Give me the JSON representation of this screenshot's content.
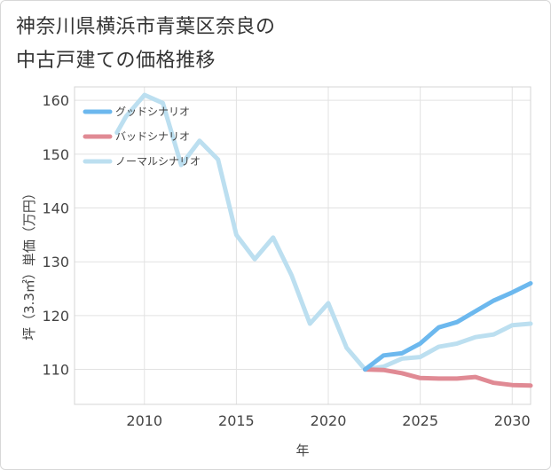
{
  "title_lines": [
    "神奈川県横浜市青葉区奈良の",
    "中古戸建ての価格推移"
  ],
  "chart_data": {
    "type": "line",
    "xlabel": "年",
    "ylabel": "坪（3.3㎡）単価（万円）",
    "xlim": [
      2006.2,
      2031
    ],
    "ylim": [
      103.5,
      162.5
    ],
    "x_ticks": [
      2010,
      2015,
      2020,
      2025,
      2030
    ],
    "y_ticks": [
      110,
      120,
      130,
      140,
      150,
      160
    ],
    "grid": true,
    "legend_position": "top-left",
    "series": [
      {
        "name": "グッドシナリオ",
        "color": "#6cb8ee",
        "width": 5,
        "x": [
          2022,
          2023,
          2024,
          2025,
          2026,
          2027,
          2028,
          2029,
          2030,
          2031
        ],
        "y": [
          110.0,
          112.6,
          113.0,
          114.8,
          117.8,
          118.8,
          120.8,
          122.8,
          124.3,
          126.0
        ]
      },
      {
        "name": "バッドシナリオ",
        "color": "#e08a94",
        "width": 5,
        "x": [
          2022,
          2023,
          2024,
          2025,
          2026,
          2027,
          2028,
          2029,
          2030,
          2031
        ],
        "y": [
          110.0,
          109.9,
          109.3,
          108.4,
          108.3,
          108.3,
          108.6,
          107.5,
          107.1,
          107.0
        ]
      },
      {
        "name": "ノーマルシナリオ",
        "color": "#bcdff0",
        "width": 5,
        "x": [
          2008.5,
          2009,
          2010,
          2011,
          2012,
          2013,
          2014,
          2015,
          2016,
          2017,
          2018,
          2019,
          2020,
          2021,
          2022,
          2023,
          2024,
          2025,
          2026,
          2027,
          2028,
          2029,
          2030,
          2031
        ],
        "y": [
          154.0,
          157.0,
          161.0,
          159.5,
          148.0,
          152.5,
          149.0,
          135.0,
          130.5,
          134.5,
          127.5,
          118.5,
          122.3,
          114.0,
          110.0,
          110.5,
          112.0,
          112.3,
          114.2,
          114.8,
          116.0,
          116.5,
          118.2,
          118.5
        ]
      }
    ]
  }
}
